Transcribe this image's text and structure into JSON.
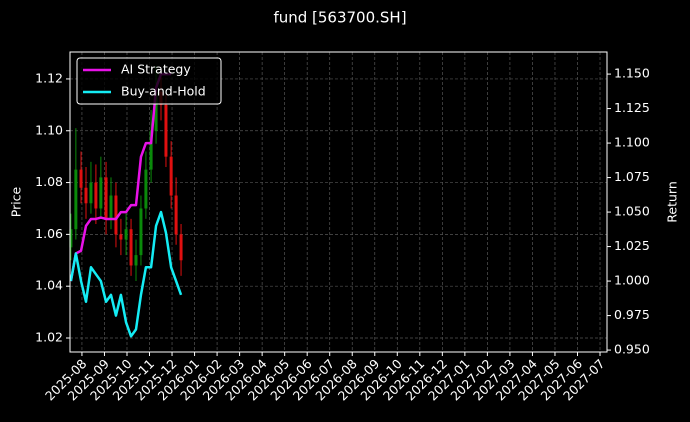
{
  "chart_data": {
    "type": "candlestick",
    "title": "fund [563700.SH]",
    "ylabel": "Price",
    "y2label": "Return",
    "x": [
      -0.49,
      -0.27,
      -0.04,
      0.18,
      0.4,
      0.62,
      0.84,
      1.07,
      1.29,
      1.51,
      1.73,
      1.96,
      2.18,
      2.4,
      2.62,
      2.84,
      3.07,
      3.29,
      3.51,
      3.73,
      3.96,
      4.18,
      4.4
    ],
    "open": [
      1.055,
      1.062,
      1.085,
      1.078,
      1.072,
      1.08,
      1.07,
      1.082,
      1.066,
      1.075,
      1.06,
      1.058,
      1.062,
      1.048,
      1.052,
      1.07,
      1.085,
      1.1,
      1.115,
      1.11,
      1.09,
      1.075,
      1.06
    ],
    "high": [
      1.068,
      1.101,
      1.092,
      1.086,
      1.088,
      1.087,
      1.09,
      1.088,
      1.082,
      1.08,
      1.066,
      1.068,
      1.066,
      1.058,
      1.075,
      1.092,
      1.108,
      1.125,
      1.122,
      1.114,
      1.096,
      1.082,
      1.064
    ],
    "low": [
      1.05,
      1.058,
      1.072,
      1.066,
      1.068,
      1.064,
      1.066,
      1.06,
      1.062,
      1.055,
      1.052,
      1.052,
      1.044,
      1.042,
      1.048,
      1.066,
      1.08,
      1.095,
      1.104,
      1.086,
      1.07,
      1.056,
      1.044
    ],
    "close": [
      1.062,
      1.085,
      1.078,
      1.072,
      1.08,
      1.07,
      1.082,
      1.066,
      1.075,
      1.06,
      1.058,
      1.062,
      1.048,
      1.052,
      1.07,
      1.085,
      1.1,
      1.115,
      1.11,
      1.09,
      1.075,
      1.06,
      1.05
    ],
    "up_color": "#0a8a0a",
    "down_color": "#e01010",
    "series": [
      {
        "name": "AI Strategy",
        "type": "line",
        "axis": "y2",
        "color": "#e812e8",
        "values": [
          1.0,
          1.02,
          1.022,
          1.04,
          1.045,
          1.045,
          1.046,
          1.045,
          1.045,
          1.045,
          1.05,
          1.05,
          1.055,
          1.055,
          1.09,
          1.1,
          1.1,
          1.14,
          1.15,
          1.15,
          1.15,
          null,
          null
        ]
      },
      {
        "name": "Buy-and-Hold",
        "type": "line",
        "axis": "y2",
        "color": "#14ecf4",
        "values": [
          1.0,
          1.02,
          1.0,
          0.985,
          1.01,
          1.005,
          1.0,
          0.985,
          0.99,
          0.975,
          0.99,
          0.97,
          0.96,
          0.965,
          0.99,
          1.01,
          1.01,
          1.04,
          1.05,
          1.035,
          1.01,
          1.0,
          0.99
        ]
      }
    ],
    "xlim": [
      -0.53,
      23.31
    ],
    "xticks": [
      {
        "value": 0,
        "label": "2025-08"
      },
      {
        "value": 1,
        "label": "2025-09"
      },
      {
        "value": 2,
        "label": "2025-10"
      },
      {
        "value": 3,
        "label": "2025-11"
      },
      {
        "value": 4,
        "label": "2025-12"
      },
      {
        "value": 5,
        "label": "2026-01"
      },
      {
        "value": 6,
        "label": "2026-02"
      },
      {
        "value": 7,
        "label": "2026-03"
      },
      {
        "value": 8,
        "label": "2026-04"
      },
      {
        "value": 9,
        "label": "2026-05"
      },
      {
        "value": 10,
        "label": "2026-06"
      },
      {
        "value": 11,
        "label": "2026-07"
      },
      {
        "value": 12,
        "label": "2026-08"
      },
      {
        "value": 13,
        "label": "2026-09"
      },
      {
        "value": 14,
        "label": "2026-10"
      },
      {
        "value": 15,
        "label": "2026-11"
      },
      {
        "value": 16,
        "label": "2026-12"
      },
      {
        "value": 17,
        "label": "2027-01"
      },
      {
        "value": 18,
        "label": "2027-02"
      },
      {
        "value": 19,
        "label": "2027-03"
      },
      {
        "value": 20,
        "label": "2027-04"
      },
      {
        "value": 21,
        "label": "2027-05"
      },
      {
        "value": 22,
        "label": "2027-06"
      },
      {
        "value": 23,
        "label": "2027-07"
      }
    ],
    "ylim": [
      1.0146,
      1.1304
    ],
    "yticks": [
      {
        "value": 1.02,
        "label": "1.02"
      },
      {
        "value": 1.04,
        "label": "1.04"
      },
      {
        "value": 1.06,
        "label": "1.06"
      },
      {
        "value": 1.08,
        "label": "1.08"
      },
      {
        "value": 1.1,
        "label": "1.10"
      },
      {
        "value": 1.12,
        "label": "1.12"
      }
    ],
    "y2lim": [
      0.9486,
      1.166
    ],
    "y2ticks": [
      {
        "value": 0.95,
        "label": "0.950"
      },
      {
        "value": 0.975,
        "label": "0.975"
      },
      {
        "value": 1.0,
        "label": "1.000"
      },
      {
        "value": 1.025,
        "label": "1.025"
      },
      {
        "value": 1.05,
        "label": "1.050"
      },
      {
        "value": 1.075,
        "label": "1.075"
      },
      {
        "value": 1.1,
        "label": "1.100"
      },
      {
        "value": 1.125,
        "label": "1.125"
      },
      {
        "value": 1.15,
        "label": "1.150"
      }
    ],
    "grid": true,
    "legend": "upper left"
  }
}
